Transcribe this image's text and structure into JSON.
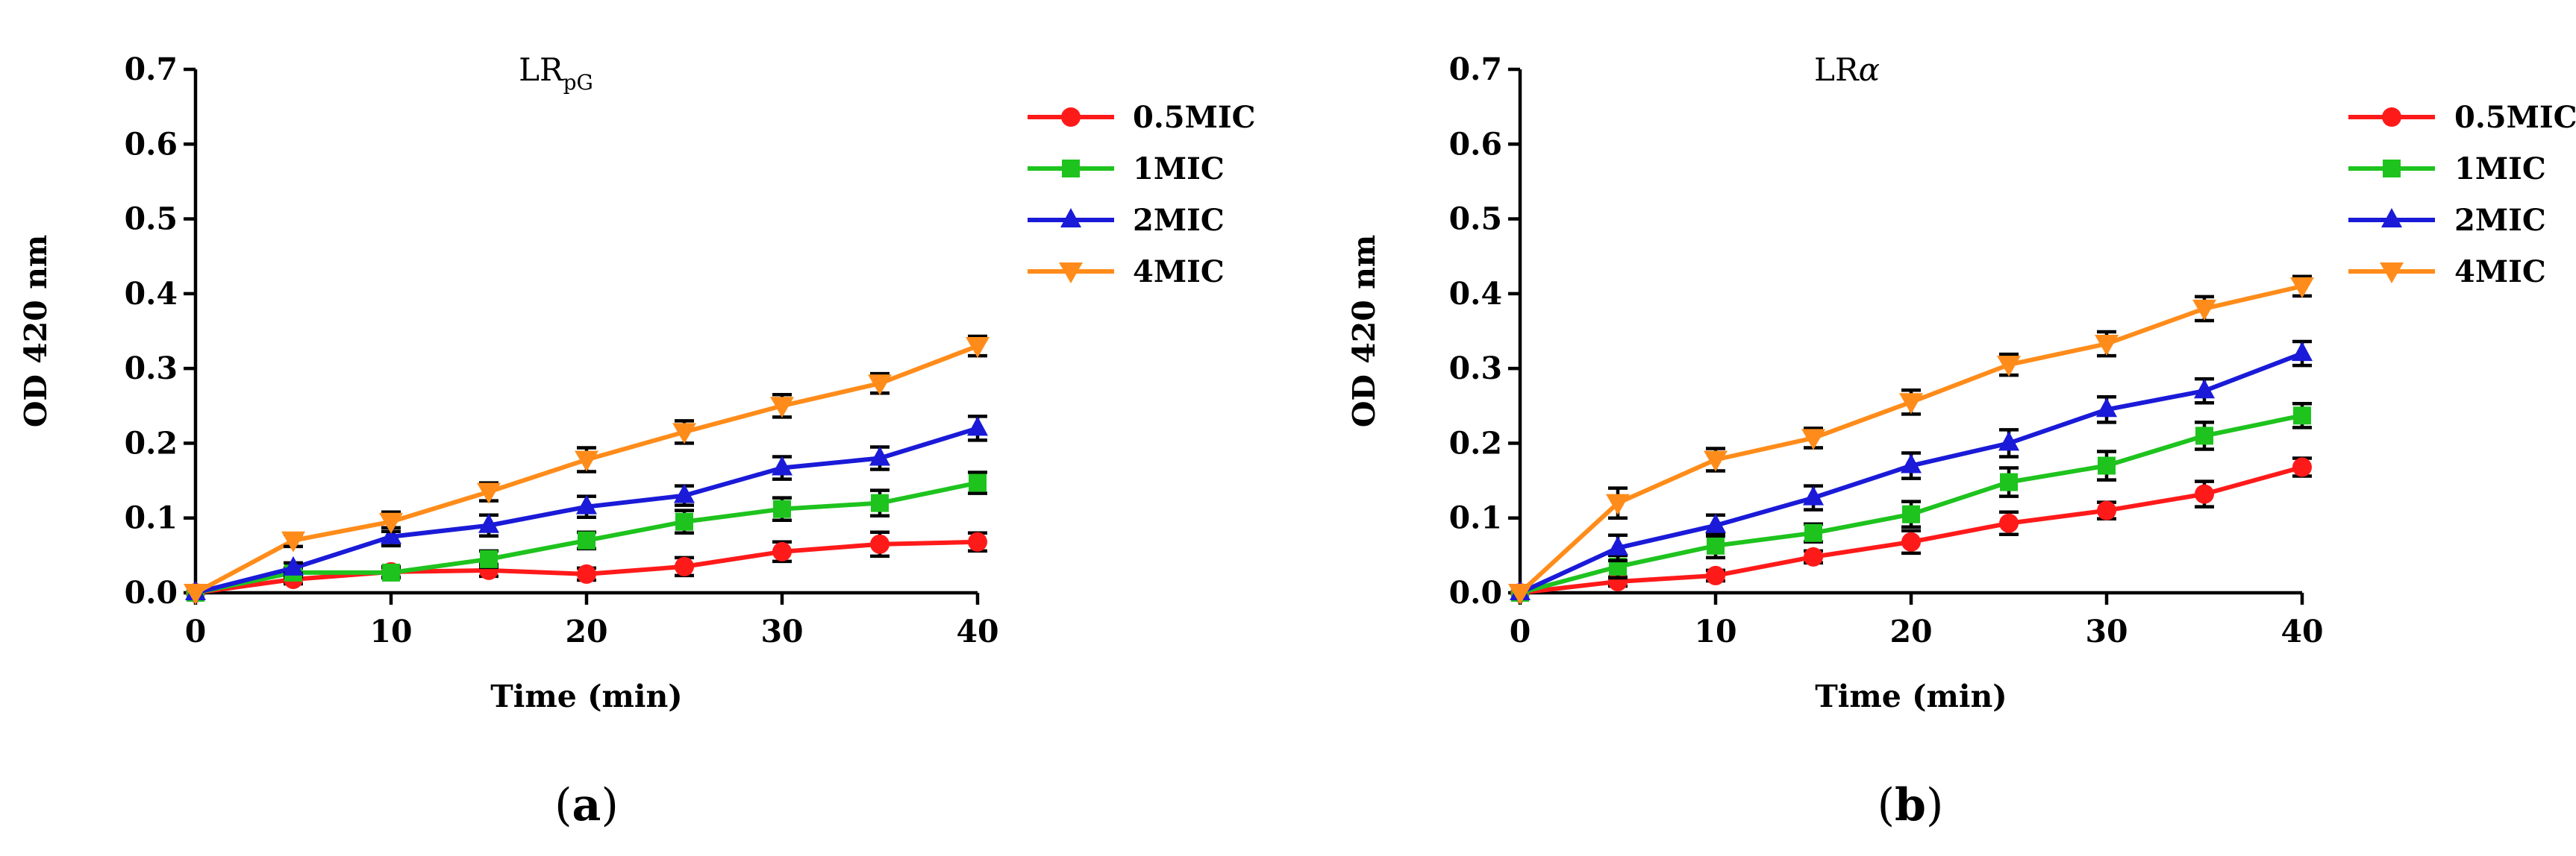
{
  "colors": {
    "0.5MIC": "#ff1a1a",
    "1MIC": "#1ec31e",
    "2MIC": "#1a1ad8",
    "4MIC": "#ff8c1a"
  },
  "chart_data": [
    {
      "type": "line",
      "panel_label": "a",
      "title": "LR",
      "title_subscript": "pG",
      "xlabel": "Time (min)",
      "ylabel": "OD 420 nm",
      "xlim": [
        0,
        40
      ],
      "ylim": [
        0,
        0.7
      ],
      "x_ticks": [
        0,
        10,
        20,
        30,
        40
      ],
      "x_tick_labels": [
        "0",
        "10",
        "20",
        "30",
        "40"
      ],
      "y_ticks": [
        0,
        0.1,
        0.2,
        0.3,
        0.4,
        0.5,
        0.6,
        0.7
      ],
      "y_tick_labels": [
        "0.0",
        "0.1",
        "0.2",
        "0.3",
        "0.4",
        "0.5",
        "0.6",
        "0.7"
      ],
      "legend_position": "right",
      "x": [
        0,
        5,
        10,
        15,
        20,
        25,
        30,
        35,
        40
      ],
      "series": [
        {
          "name": "0.5MIC",
          "marker": "circle",
          "values": [
            0,
            0.018,
            0.028,
            0.03,
            0.025,
            0.035,
            0.055,
            0.065,
            0.068
          ],
          "errors": [
            0,
            0.006,
            0.007,
            0.008,
            0.008,
            0.012,
            0.013,
            0.016,
            0.012
          ]
        },
        {
          "name": "1MIC",
          "marker": "square",
          "values": [
            0,
            0.027,
            0.027,
            0.045,
            0.07,
            0.095,
            0.112,
            0.12,
            0.147
          ],
          "errors": [
            0,
            0.006,
            0.007,
            0.011,
            0.011,
            0.015,
            0.015,
            0.017,
            0.014
          ]
        },
        {
          "name": "2MIC",
          "marker": "triangle-up",
          "values": [
            0,
            0.033,
            0.075,
            0.09,
            0.115,
            0.13,
            0.167,
            0.18,
            0.22
          ],
          "errors": [
            0,
            0.007,
            0.012,
            0.014,
            0.014,
            0.013,
            0.015,
            0.015,
            0.016
          ]
        },
        {
          "name": "4MIC",
          "marker": "triangle-down",
          "values": [
            0,
            0.07,
            0.095,
            0.135,
            0.178,
            0.215,
            0.25,
            0.28,
            0.33
          ],
          "errors": [
            0,
            0.008,
            0.013,
            0.012,
            0.016,
            0.015,
            0.015,
            0.013,
            0.013
          ]
        }
      ]
    },
    {
      "type": "line",
      "panel_label": "b",
      "title": "LR",
      "title_suffix": "α",
      "xlabel": "Time (min)",
      "ylabel": "OD 420 nm",
      "xlim": [
        0,
        40
      ],
      "ylim": [
        0,
        0.7
      ],
      "x_ticks": [
        0,
        10,
        20,
        30,
        40
      ],
      "x_tick_labels": [
        "0",
        "10",
        "20",
        "30",
        "40"
      ],
      "y_ticks": [
        0,
        0.1,
        0.2,
        0.3,
        0.4,
        0.5,
        0.6,
        0.7
      ],
      "y_tick_labels": [
        "0.0",
        "0.1",
        "0.2",
        "0.3",
        "0.4",
        "0.5",
        "0.6",
        "0.7"
      ],
      "legend_position": "right",
      "x": [
        0,
        5,
        10,
        15,
        20,
        25,
        30,
        35,
        40
      ],
      "series": [
        {
          "name": "0.5MIC",
          "marker": "circle",
          "values": [
            0,
            0.015,
            0.023,
            0.048,
            0.068,
            0.093,
            0.11,
            0.132,
            0.168
          ],
          "errors": [
            0,
            0.006,
            0.007,
            0.008,
            0.015,
            0.015,
            0.011,
            0.017,
            0.012
          ]
        },
        {
          "name": "1MIC",
          "marker": "square",
          "values": [
            0,
            0.035,
            0.063,
            0.08,
            0.105,
            0.148,
            0.17,
            0.21,
            0.237
          ],
          "errors": [
            0,
            0.015,
            0.016,
            0.012,
            0.017,
            0.019,
            0.019,
            0.018,
            0.016
          ]
        },
        {
          "name": "2MIC",
          "marker": "triangle-up",
          "values": [
            0,
            0.06,
            0.09,
            0.127,
            0.17,
            0.2,
            0.245,
            0.27,
            0.32
          ],
          "errors": [
            0,
            0.017,
            0.014,
            0.016,
            0.017,
            0.018,
            0.017,
            0.016,
            0.016
          ]
        },
        {
          "name": "4MIC",
          "marker": "triangle-down",
          "values": [
            0,
            0.12,
            0.178,
            0.207,
            0.255,
            0.305,
            0.333,
            0.38,
            0.41
          ],
          "errors": [
            0,
            0.02,
            0.015,
            0.013,
            0.016,
            0.014,
            0.016,
            0.016,
            0.013
          ]
        }
      ]
    }
  ]
}
